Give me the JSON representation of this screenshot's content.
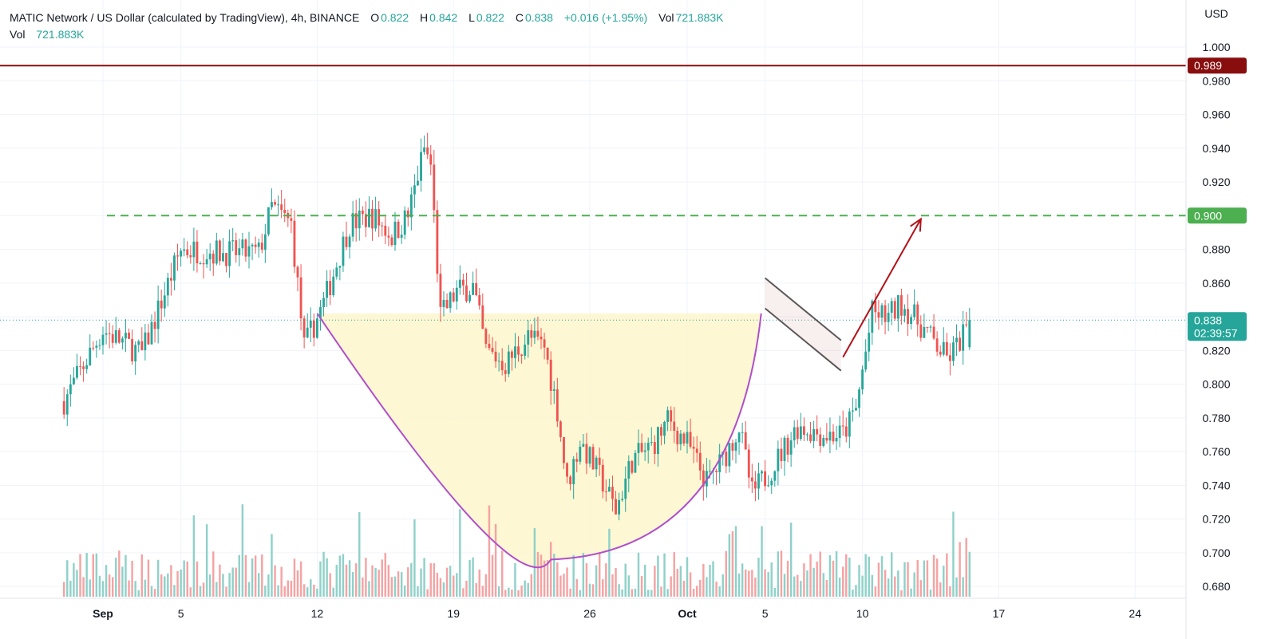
{
  "legend": {
    "symbol": "MATIC Network / US Dollar (calculated by TradingView), 4h, BINANCE",
    "o_label": "O",
    "o_value": "0.822",
    "h_label": "H",
    "h_value": "0.842",
    "l_label": "L",
    "l_value": "0.822",
    "c_label": "C",
    "c_value": "0.838",
    "change": "+0.016 (+1.95%)",
    "vol_label": "Vol",
    "vol_value": "721.883K",
    "vol_row_label": "Vol",
    "vol_row_value": "721.883K"
  },
  "colors": {
    "up": "#26a69a",
    "down": "#ef5350",
    "up_volume": "#8fd1c9",
    "down_volume": "#f5a3a3",
    "resistance": "#880e0e",
    "target": "#4caf50",
    "cup_fill": "#fdf6cf",
    "cup_line": "#b04fc9",
    "arrow": "#b3121a",
    "flag": "#555555"
  },
  "chart_data": {
    "type": "candlestick",
    "title": "MATIC Network / US Dollar (calculated by TradingView), 4h, BINANCE",
    "y_axis_unit": "USD",
    "ylim": [
      0.675,
      1.012
    ],
    "y_ticks": [
      1.0,
      0.98,
      0.96,
      0.94,
      0.92,
      0.9,
      0.88,
      0.86,
      0.84,
      0.82,
      0.8,
      0.78,
      0.76,
      0.74,
      0.72,
      0.7,
      0.68
    ],
    "y_tick_labels": [
      "1.000",
      "0.980",
      "0.960",
      "0.940",
      "0.920",
      "0.900",
      "0.880",
      "0.860",
      "0.840",
      "0.820",
      "0.800",
      "0.780",
      "0.760",
      "0.740",
      "0.720",
      "0.700",
      "0.680"
    ],
    "x_range_days": [
      -3.0,
      25.0
    ],
    "x_ticks": [
      {
        "day": 1,
        "label": "Sep",
        "bold": true
      },
      {
        "day": 5,
        "label": "5",
        "bold": false
      },
      {
        "day": 12,
        "label": "12",
        "bold": false
      },
      {
        "day": 19,
        "label": "19",
        "bold": false
      },
      {
        "day": 26,
        "label": "26",
        "bold": false
      },
      {
        "day": 31,
        "label": "Oct",
        "bold": true
      },
      {
        "day": 35,
        "label": "5",
        "bold": false
      },
      {
        "day": 40,
        "label": "10",
        "bold": false
      },
      {
        "day": 47,
        "label": "17",
        "bold": false
      },
      {
        "day": 54,
        "label": "24",
        "bold": false
      }
    ],
    "price_path_keypoints": [
      [
        0,
        0.79
      ],
      [
        12,
        0.832
      ],
      [
        24,
        0.818
      ],
      [
        36,
        0.88
      ],
      [
        50,
        0.878
      ],
      [
        60,
        0.878
      ],
      [
        64,
        0.905
      ],
      [
        70,
        0.895
      ],
      [
        74,
        0.822
      ],
      [
        80,
        0.848
      ],
      [
        88,
        0.895
      ],
      [
        95,
        0.9
      ],
      [
        101,
        0.888
      ],
      [
        106,
        0.9
      ],
      [
        111,
        0.94
      ],
      [
        113,
        0.93
      ],
      [
        116,
        0.84
      ],
      [
        121,
        0.855
      ],
      [
        126,
        0.858
      ],
      [
        130,
        0.82
      ],
      [
        136,
        0.812
      ],
      [
        143,
        0.828
      ],
      [
        148,
        0.822
      ],
      [
        152,
        0.785
      ],
      [
        155,
        0.74
      ],
      [
        159,
        0.766
      ],
      [
        166,
        0.742
      ],
      [
        170,
        0.725
      ],
      [
        175,
        0.755
      ],
      [
        181,
        0.763
      ],
      [
        186,
        0.778
      ],
      [
        192,
        0.765
      ],
      [
        198,
        0.742
      ],
      [
        203,
        0.755
      ],
      [
        208,
        0.775
      ],
      [
        212,
        0.735
      ],
      [
        218,
        0.75
      ],
      [
        226,
        0.775
      ],
      [
        234,
        0.77
      ],
      [
        240,
        0.77
      ],
      [
        244,
        0.785
      ],
      [
        249,
        0.842
      ],
      [
        254,
        0.84
      ],
      [
        258,
        0.848
      ],
      [
        264,
        0.835
      ],
      [
        272,
        0.815
      ],
      [
        275,
        0.822
      ],
      [
        279,
        0.838
      ]
    ],
    "last_price": 0.838,
    "countdown": "02:39:57",
    "horizontal_levels": [
      {
        "value": 0.989,
        "label": "0.989",
        "style": "solid"
      },
      {
        "value": 0.9,
        "label": "0.900",
        "style": "dashed"
      }
    ],
    "last_price_line": {
      "value": 0.838,
      "style": "dotted"
    },
    "annotations": [
      {
        "kind": "cup",
        "from_day": 12.0,
        "bottom_day": 24.0,
        "to_day": 34.8,
        "bottom_value": 0.696,
        "rim_value": 0.842
      },
      {
        "kind": "flag_channel",
        "from_day": 35.0,
        "to_day": 38.9,
        "upper": [
          0.863,
          0.826
        ],
        "lower": [
          0.845,
          0.808
        ]
      },
      {
        "kind": "arrow",
        "from_day": 39.0,
        "from_value": 0.816,
        "to_day": 43.0,
        "to_value": 0.898
      }
    ]
  }
}
